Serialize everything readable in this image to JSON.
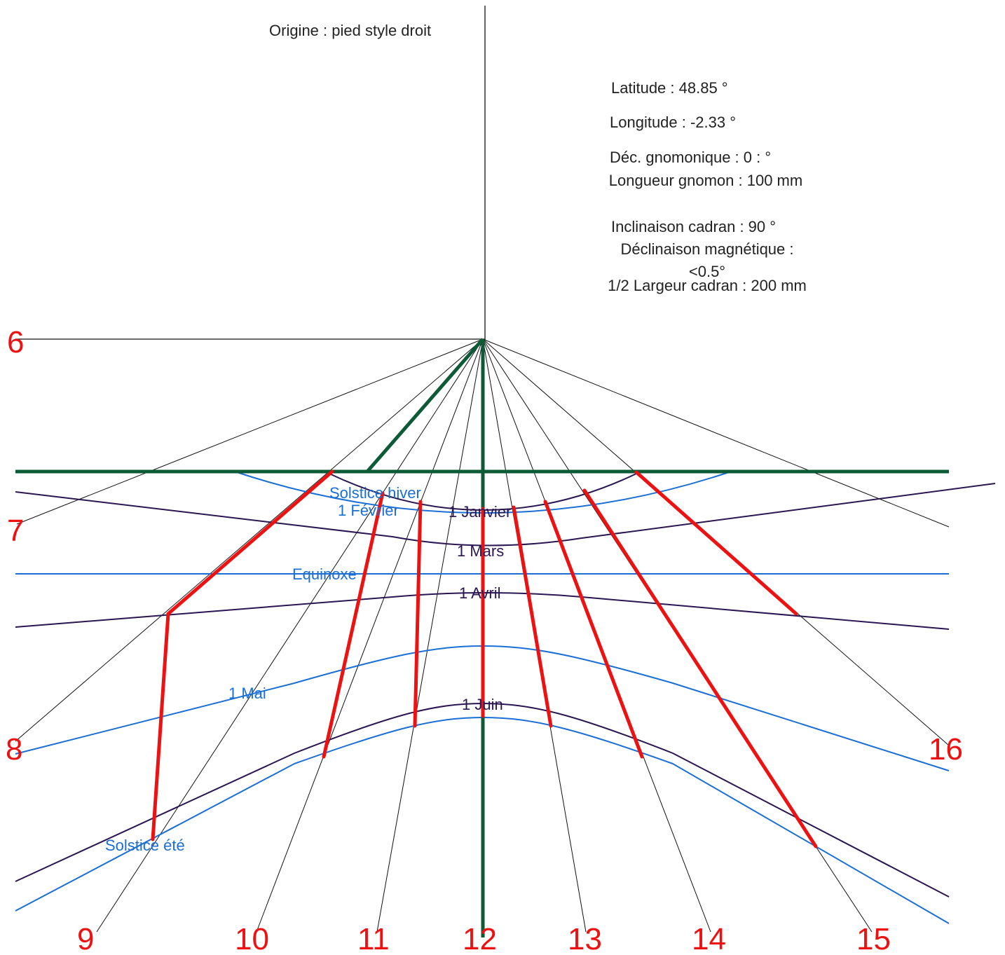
{
  "origin_label": "Origine : pied style droit",
  "parameters": {
    "latitude": "Latitude : 48.85 °",
    "longitude": "Longitude : -2.33 °",
    "declinaison_gnomonique": "Déc. gnomonique  : 0 : °",
    "longueur_gnomon": "Longueur gnomon : 100 mm",
    "inclinaison": "Inclinaison cadran : 90 °",
    "declinaison_magnetique": "Déclinaison magnétique : <0.5°",
    "demi_largeur": "1/2 Largeur cadran : 200 mm"
  },
  "hour_labels": {
    "h6": "6",
    "h7": "7",
    "h8": "8",
    "h9": "9",
    "h10": "10",
    "h11": "11",
    "h12": "12",
    "h13": "13",
    "h14": "14",
    "h15": "15",
    "h16": "16"
  },
  "date_labels": {
    "solstice_hiver": "Solstice hiver",
    "fevrier": "1 Février",
    "janvier": "1 Janvier",
    "mars": "1 Mars",
    "equinoxe": "Equinoxe",
    "avril": "1 Avril",
    "mai": "1 Mai",
    "juin": "1 Juin",
    "solstice_ete": "Solstice été"
  },
  "colors": {
    "hour_line": "#ee1111",
    "hour_label": "#ee1111",
    "blue_curve": "#1a6fd6",
    "dark_curve": "#2a1650",
    "style": "#0d5a36",
    "thin_line": "#111111"
  }
}
